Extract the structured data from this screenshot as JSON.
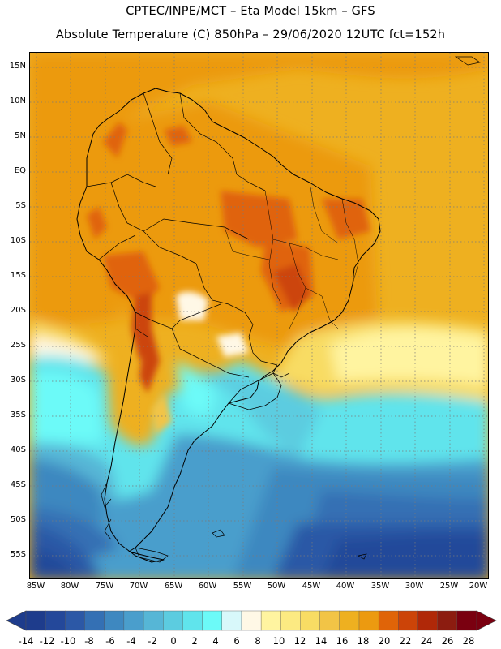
{
  "header": {
    "line1": "CPTEC/INPE/MCT –  Eta Model 15km – GFS",
    "line2": "Absolute Temperature (C) 850hPa – 29/06/2020 12UTC fct=152h"
  },
  "map": {
    "lat_ticks": [
      "15N",
      "10N",
      "5N",
      "EQ",
      "5S",
      "10S",
      "15S",
      "20S",
      "25S",
      "30S",
      "35S",
      "40S",
      "45S",
      "50S",
      "55S"
    ],
    "lon_ticks": [
      "85W",
      "80W",
      "75W",
      "70W",
      "65W",
      "60W",
      "55W",
      "50W",
      "45W",
      "40W",
      "35W",
      "30W",
      "25W",
      "20W"
    ]
  },
  "colorbar": {
    "labels": [
      "-14",
      "-12",
      "-10",
      "-8",
      "-6",
      "-4",
      "-2",
      "0",
      "2",
      "4",
      "6",
      "8",
      "10",
      "12",
      "14",
      "16",
      "18",
      "20",
      "22",
      "24",
      "26",
      "28"
    ],
    "colors": [
      "#1e3c8c",
      "#24489a",
      "#2c58a6",
      "#3470b4",
      "#3e88c0",
      "#4a9ecc",
      "#56b6d6",
      "#5ccce0",
      "#60e4ec",
      "#6cfaf8",
      "#d8f8fa",
      "#fff8e6",
      "#fff4a0",
      "#fcea82",
      "#f8dc64",
      "#f2c446",
      "#eeb020",
      "#ec9a10",
      "#e06408",
      "#cc4408",
      "#b02808",
      "#8c1c10",
      "#7a0010"
    ],
    "under_color": "#1e3c8c",
    "over_color": "#7a0010"
  }
}
